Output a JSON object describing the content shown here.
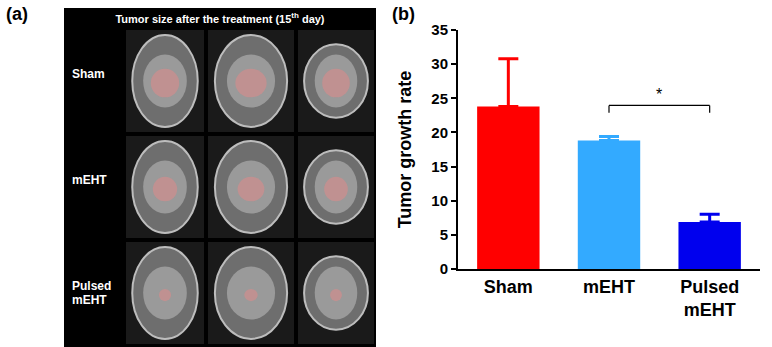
{
  "panel_a": {
    "label": "(a)",
    "title": [
      "Tumor size after the treatment (15",
      {
        "sup": "th"
      },
      " day)"
    ],
    "rows": [
      "Sham",
      "mEHT",
      "Pulsed mEHT"
    ]
  },
  "chart_data": {
    "type": "bar",
    "label": "(b)",
    "y_label": "Tumor growth rate",
    "categories": [
      "Sham",
      "mEHT",
      "Pulsed mEHT"
    ],
    "values": [
      23.8,
      18.8,
      6.9
    ],
    "errors": [
      7,
      0.6,
      1.1
    ],
    "colors": [
      "#ff0000",
      "#33aaff",
      "#0000ee"
    ],
    "ylim": [
      0,
      35
    ],
    "yticks": [
      0,
      5,
      10,
      15,
      20,
      25,
      30,
      35
    ],
    "grid": false,
    "significance": [
      {
        "from": "mEHT",
        "to": "Pulsed mEHT",
        "label": "*"
      }
    ]
  }
}
